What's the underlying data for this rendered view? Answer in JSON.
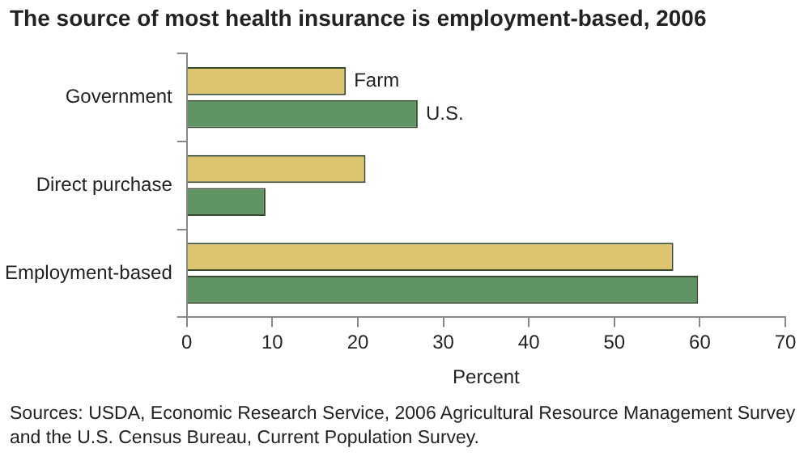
{
  "chart_data": {
    "type": "bar",
    "orientation": "horizontal",
    "title": "The source of most health insurance is employment-based, 2006",
    "xlabel": "Percent",
    "categories": [
      "Government",
      "Direct purchase",
      "Employment-based"
    ],
    "series": [
      {
        "name": "Farm",
        "color": "#dcc56e",
        "values": [
          18.6,
          20.9,
          56.9
        ]
      },
      {
        "name": "U.S.",
        "color": "#5f9565",
        "values": [
          27.0,
          9.2,
          59.8
        ]
      }
    ],
    "xlim": [
      0,
      70
    ],
    "xticks": [
      0,
      10,
      20,
      30,
      40,
      50,
      60,
      70
    ],
    "legend": false,
    "annotations": [
      "Sources: USDA, Economic Research Service, 2006 Agricultural Resource Management Survey and the U.S. Census Bureau, Current Population Survey."
    ]
  }
}
